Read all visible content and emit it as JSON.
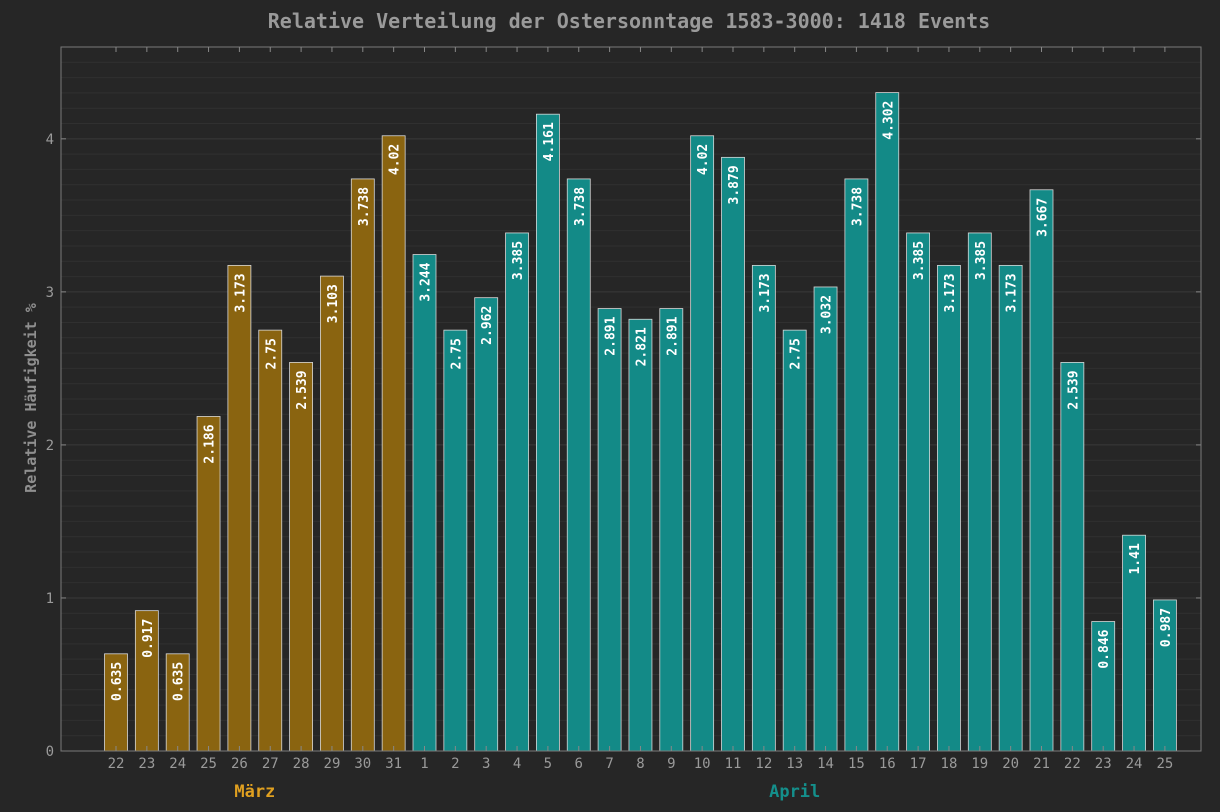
{
  "chart_data": {
    "type": "bar",
    "title": "Relative Verteilung der Ostersonntage 1583-3000: 1418 Events",
    "xlabel": "",
    "ylabel": "Relative Häufigkeit %",
    "ylim": [
      0,
      4.6
    ],
    "yticks": [
      "0",
      "1",
      "2",
      "3",
      "4"
    ],
    "grid": true,
    "categories": [
      "22",
      "23",
      "24",
      "25",
      "26",
      "27",
      "28",
      "29",
      "30",
      "31",
      "1",
      "2",
      "3",
      "4",
      "5",
      "6",
      "7",
      "8",
      "9",
      "10",
      "11",
      "12",
      "13",
      "14",
      "15",
      "16",
      "17",
      "18",
      "19",
      "20",
      "21",
      "22",
      "23",
      "24",
      "25"
    ],
    "values": [
      0.635,
      0.917,
      0.635,
      2.186,
      3.173,
      2.75,
      2.539,
      3.103,
      3.738,
      4.02,
      3.244,
      2.75,
      2.962,
      3.385,
      4.161,
      3.738,
      2.891,
      2.821,
      2.891,
      4.02,
      3.879,
      3.173,
      2.75,
      3.032,
      3.738,
      4.302,
      3.385,
      3.173,
      3.385,
      3.173,
      3.667,
      2.539,
      0.846,
      1.41,
      0.987
    ],
    "value_labels": [
      "0.635",
      "0.917",
      "0.635",
      "2.186",
      "3.173",
      "2.75",
      "2.539",
      "3.103",
      "3.738",
      "4.02",
      "3.244",
      "2.75",
      "2.962",
      "3.385",
      "4.161",
      "3.738",
      "2.891",
      "2.821",
      "2.891",
      "4.02",
      "3.879",
      "3.173",
      "2.75",
      "3.032",
      "3.738",
      "4.302",
      "3.385",
      "3.173",
      "3.385",
      "3.173",
      "3.667",
      "2.539",
      "0.846",
      "1.41",
      "0.987"
    ],
    "groups": [
      {
        "name": "März",
        "count": 10,
        "color": "#8a6410",
        "label_color": "#e0a020"
      },
      {
        "name": "April",
        "count": 25,
        "color": "#138a87",
        "label_color": "#148f8b"
      }
    ]
  }
}
